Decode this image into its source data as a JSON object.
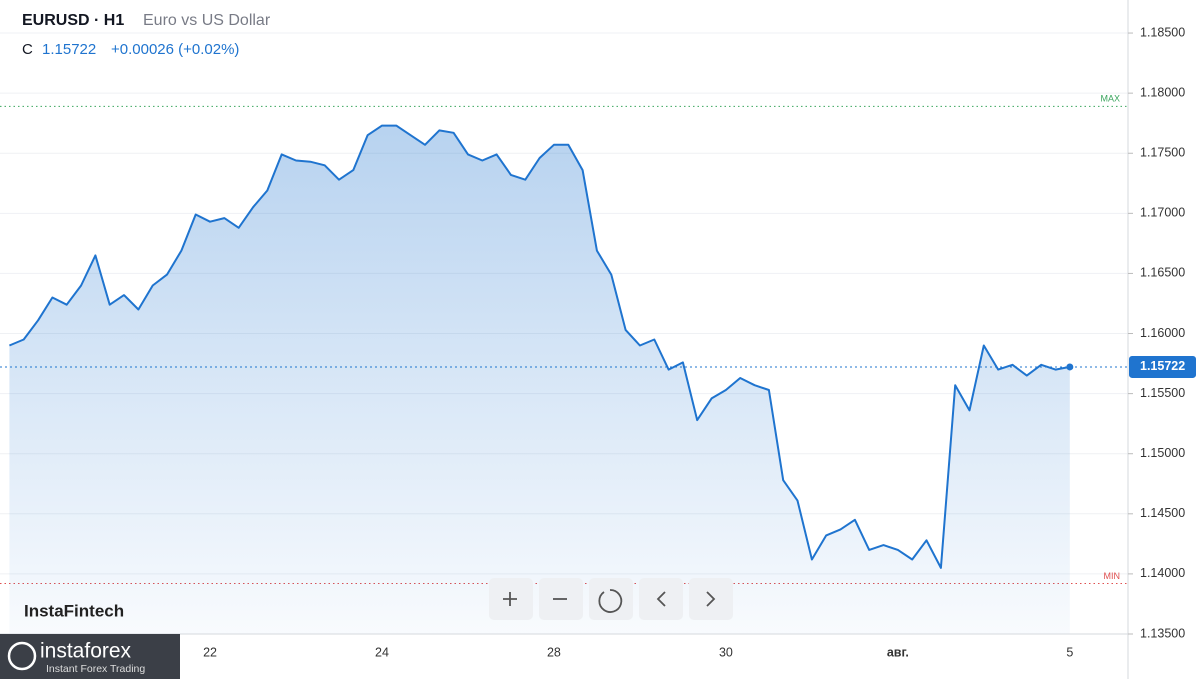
{
  "header": {
    "symbol": "EURUSD · H1",
    "name": "Euro vs US Dollar",
    "c": "C",
    "close": "1.15722",
    "change": "+0.00026 (+0.02%)"
  },
  "branding": {
    "watermark": "InstaFintech",
    "logo": "instaforex",
    "tagline": "Instant Forex Trading"
  },
  "chart_data": {
    "type": "area",
    "categories": [
      null,
      null,
      null,
      null,
      null,
      null,
      null,
      null,
      null,
      null,
      null,
      null,
      null,
      null,
      "22",
      null,
      null,
      null,
      null,
      null,
      null,
      null,
      null,
      null,
      null,
      null,
      "24",
      null,
      null,
      null,
      null,
      null,
      null,
      null,
      null,
      null,
      null,
      null,
      "28",
      null,
      null,
      null,
      null,
      null,
      null,
      null,
      null,
      null,
      null,
      null,
      "30",
      null,
      null,
      null,
      null,
      null,
      null,
      null,
      null,
      null,
      null,
      null,
      "авг.",
      null,
      null,
      null,
      null,
      null,
      null,
      null,
      null,
      null,
      null,
      null,
      "5"
    ],
    "series": [
      {
        "name": "EURUSD",
        "color": "#1f74cf",
        "values": [
          1.159,
          1.1595,
          1.1611,
          1.163,
          1.1624,
          1.164,
          1.1665,
          1.1624,
          1.1632,
          1.162,
          1.164,
          1.1649,
          1.1669,
          1.1699,
          1.1693,
          1.1696,
          1.1688,
          1.1705,
          1.1719,
          1.1749,
          1.1744,
          1.1743,
          1.174,
          1.1728,
          1.1736,
          1.1765,
          1.1773,
          1.1773,
          1.1765,
          1.1757,
          1.1769,
          1.1767,
          1.1749,
          1.1744,
          1.1749,
          1.1732,
          1.1728,
          1.1746,
          1.1757,
          1.1757,
          1.1736,
          1.1669,
          1.1649,
          1.1603,
          1.159,
          1.1595,
          1.157,
          1.1576,
          1.1528,
          1.1546,
          1.1553,
          1.1563,
          1.1557,
          1.1553,
          1.1478,
          1.1461,
          1.1412,
          1.1432,
          1.1437,
          1.1445,
          1.142,
          1.1424,
          1.142,
          1.1412,
          1.1428,
          1.1405,
          1.1557,
          1.1536,
          1.159,
          1.157,
          1.1574,
          1.1565,
          1.1574,
          1.157,
          1.15722
        ]
      }
    ],
    "last_value": 1.15722,
    "max_line": {
      "label": "MAX",
      "value": 1.1789,
      "color": "#3aa55d"
    },
    "min_line": {
      "label": "MIN",
      "value": 1.1392,
      "color": "#e05050"
    },
    "ylim": [
      1.135,
      1.18775
    ],
    "yticks": [
      {
        "value": 1.185,
        "label": "1.18500"
      },
      {
        "value": 1.18,
        "label": "1.18000"
      },
      {
        "value": 1.175,
        "label": "1.17500"
      },
      {
        "value": 1.17,
        "label": "1.17000"
      },
      {
        "value": 1.165,
        "label": "1.16500"
      },
      {
        "value": 1.16,
        "label": "1.16000"
      },
      {
        "value": 1.155,
        "label": "1.15500"
      },
      {
        "value": 1.15,
        "label": "1.15000"
      },
      {
        "value": 1.145,
        "label": "1.14500"
      },
      {
        "value": 1.14,
        "label": "1.14000"
      },
      {
        "value": 1.135,
        "label": "1.13500"
      }
    ],
    "grid": true
  }
}
